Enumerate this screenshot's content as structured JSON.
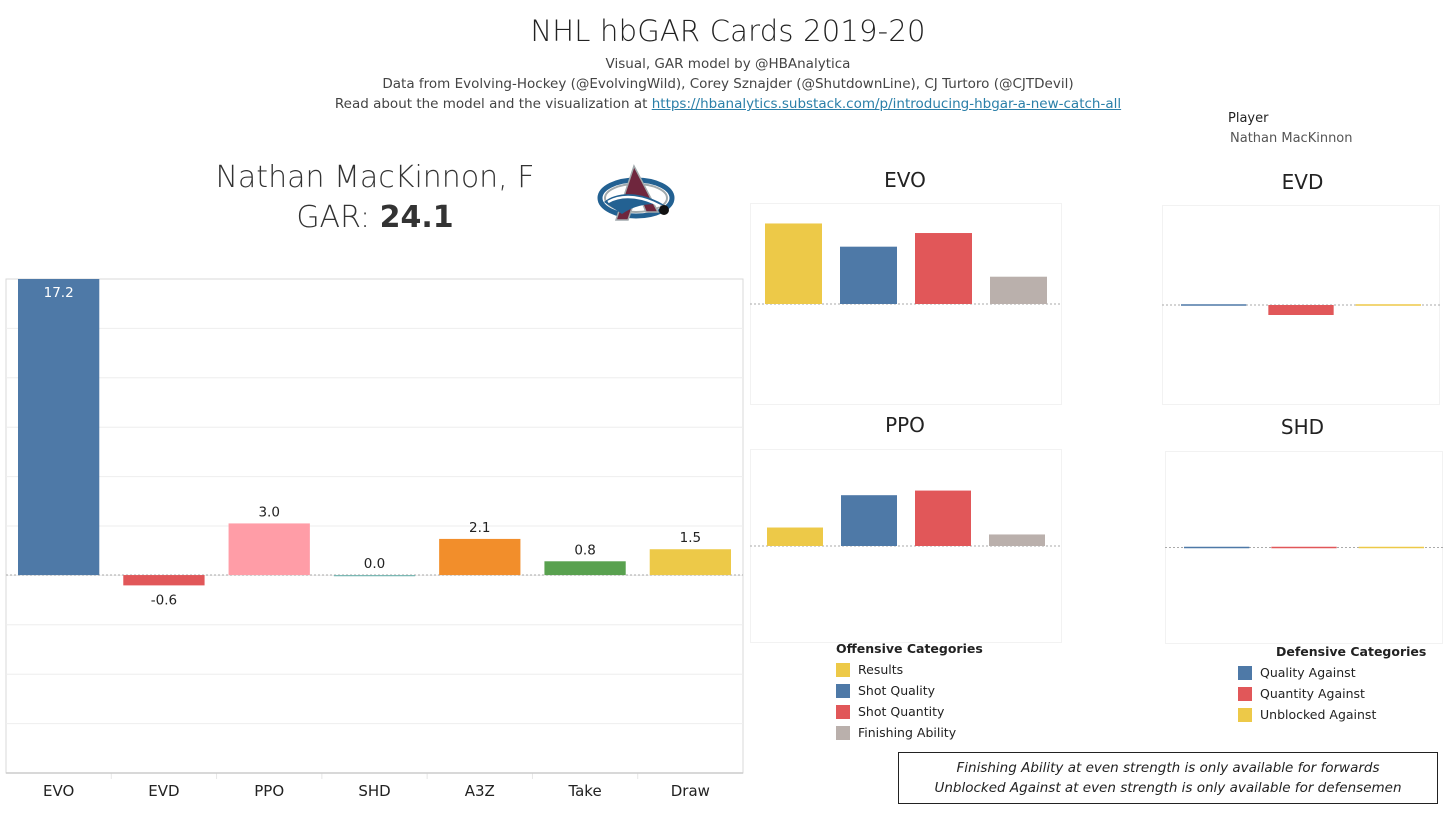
{
  "header": {
    "title": "NHL hbGAR Cards 2019-20",
    "line1": "Visual, GAR model by @HBAnalytica",
    "line2": "Data from Evolving-Hockey (@EvolvingWild), Corey Sznajder (@ShutdownLine), CJ Turtoro (@CJTDevil)",
    "line3_prefix": "Read about the model and the visualization at ",
    "line3_link": "https://hbanalytics.substack.com/p/introducing-hbgar-a-new-catch-all"
  },
  "filter": {
    "label": "Player",
    "value": "Nathan MacKinnon"
  },
  "card": {
    "player_line": "Nathan MacKinnon, F",
    "gar_label": "GAR: ",
    "gar_value": "24.1",
    "team_logo": "colorado-avalanche-logo"
  },
  "colors": {
    "blue": "#4e79a7",
    "red": "#e15759",
    "pink": "#ff9da7",
    "teal": "#76b7b2",
    "orange": "#f28e2b",
    "green": "#59a14f",
    "yellow": "#edc948",
    "gray": "#bab0ac"
  },
  "chart_data": [
    {
      "id": "main",
      "type": "bar",
      "title": "",
      "categories": [
        "EVO",
        "EVD",
        "PPO",
        "SHD",
        "A3Z",
        "Take",
        "Draw"
      ],
      "values": [
        17.2,
        -0.6,
        3.0,
        0.0,
        2.1,
        0.8,
        1.5
      ],
      "labels": [
        "17.2",
        "-0.6",
        "3.0",
        "0.0",
        "2.1",
        "0.8",
        "1.5"
      ],
      "colors": [
        "#4e79a7",
        "#e15759",
        "#ff9da7",
        "#76b7b2",
        "#f28e2b",
        "#59a14f",
        "#edc948"
      ],
      "ylim": [
        -11.5,
        17.2
      ],
      "grid": true,
      "xlabel": "",
      "ylabel": ""
    },
    {
      "id": "evo",
      "type": "bar",
      "title": "EVO",
      "categories": [
        "Results",
        "Shot Quality",
        "Shot Quantity",
        "Finishing Ability"
      ],
      "values": [
        5.9,
        4.2,
        5.2,
        2.0
      ],
      "colors": [
        "#edc948",
        "#4e79a7",
        "#e15759",
        "#bab0ac"
      ],
      "ylim": [
        -7.4,
        7.4
      ]
    },
    {
      "id": "ppo",
      "type": "bar",
      "title": "PPO",
      "categories": [
        "Results",
        "Shot Quality",
        "Shot Quantity",
        "Finishing Ability"
      ],
      "values": [
        0.4,
        1.1,
        1.2,
        0.25
      ],
      "colors": [
        "#edc948",
        "#4e79a7",
        "#e15759",
        "#bab0ac"
      ],
      "ylim": [
        -2.1,
        2.1
      ]
    },
    {
      "id": "evd",
      "type": "bar",
      "title": "EVD",
      "categories": [
        "Quality Against",
        "Quantity Against",
        "Unblocked Against"
      ],
      "values": [
        0.02,
        -0.6,
        0.0
      ],
      "colors": [
        "#4e79a7",
        "#e15759",
        "#edc948"
      ],
      "ylim": [
        -6,
        6
      ]
    },
    {
      "id": "shd",
      "type": "bar",
      "title": "SHD",
      "categories": [
        "Quality Against",
        "Quantity Against",
        "Unblocked Against"
      ],
      "values": [
        0.0,
        0.0,
        0.0
      ],
      "colors": [
        "#4e79a7",
        "#e15759",
        "#edc948"
      ],
      "ylim": [
        -6,
        6
      ]
    }
  ],
  "legends": {
    "offensive": {
      "title": "Offensive Categories",
      "items": [
        {
          "label": "Results",
          "color": "#edc948"
        },
        {
          "label": "Shot Quality",
          "color": "#4e79a7"
        },
        {
          "label": "Shot Quantity",
          "color": "#e15759"
        },
        {
          "label": "Finishing Ability",
          "color": "#bab0ac"
        }
      ]
    },
    "defensive": {
      "title": "Defensive Categories",
      "items": [
        {
          "label": "Quality Against",
          "color": "#4e79a7"
        },
        {
          "label": "Quantity Against",
          "color": "#e15759"
        },
        {
          "label": "Unblocked Against",
          "color": "#edc948"
        }
      ]
    }
  },
  "note": {
    "line1": "Finishing Ability at even strength is only available for forwards",
    "line2": "Unblocked Against at even strength is only available for defensemen"
  }
}
